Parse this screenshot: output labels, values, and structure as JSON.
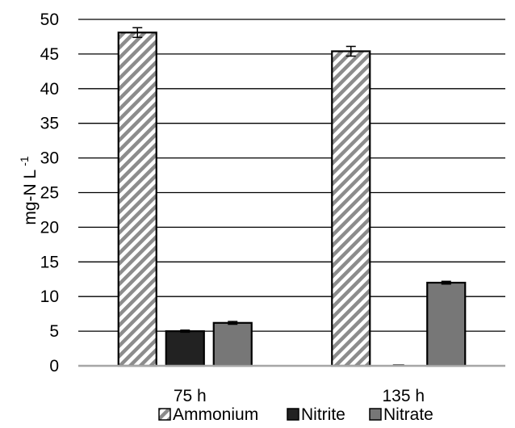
{
  "chart_data": {
    "type": "bar",
    "categories": [
      "75 h",
      "135 h"
    ],
    "series": [
      {
        "name": "Ammonium",
        "values": [
          48.1,
          45.4
        ],
        "errors": [
          0.7,
          0.7
        ],
        "pattern": "diagonal-hatch",
        "color": "#888888"
      },
      {
        "name": "Nitrite",
        "values": [
          5.0,
          0.0
        ],
        "errors": [
          0.15,
          0.0
        ],
        "pattern": "solid",
        "color": "#222222"
      },
      {
        "name": "Nitrate",
        "values": [
          6.2,
          12.0
        ],
        "errors": [
          0.2,
          0.2
        ],
        "pattern": "solid",
        "color": "#777777"
      }
    ],
    "ylabel": "mg-N L",
    "ylabel_superscript": "-1",
    "ylim": [
      0,
      50
    ],
    "yticks": [
      "0",
      "5",
      "10",
      "15",
      "20",
      "25",
      "30",
      "35",
      "40",
      "45",
      "50"
    ],
    "grid": true,
    "grid_color": "#000000",
    "legend_position": "bottom"
  }
}
